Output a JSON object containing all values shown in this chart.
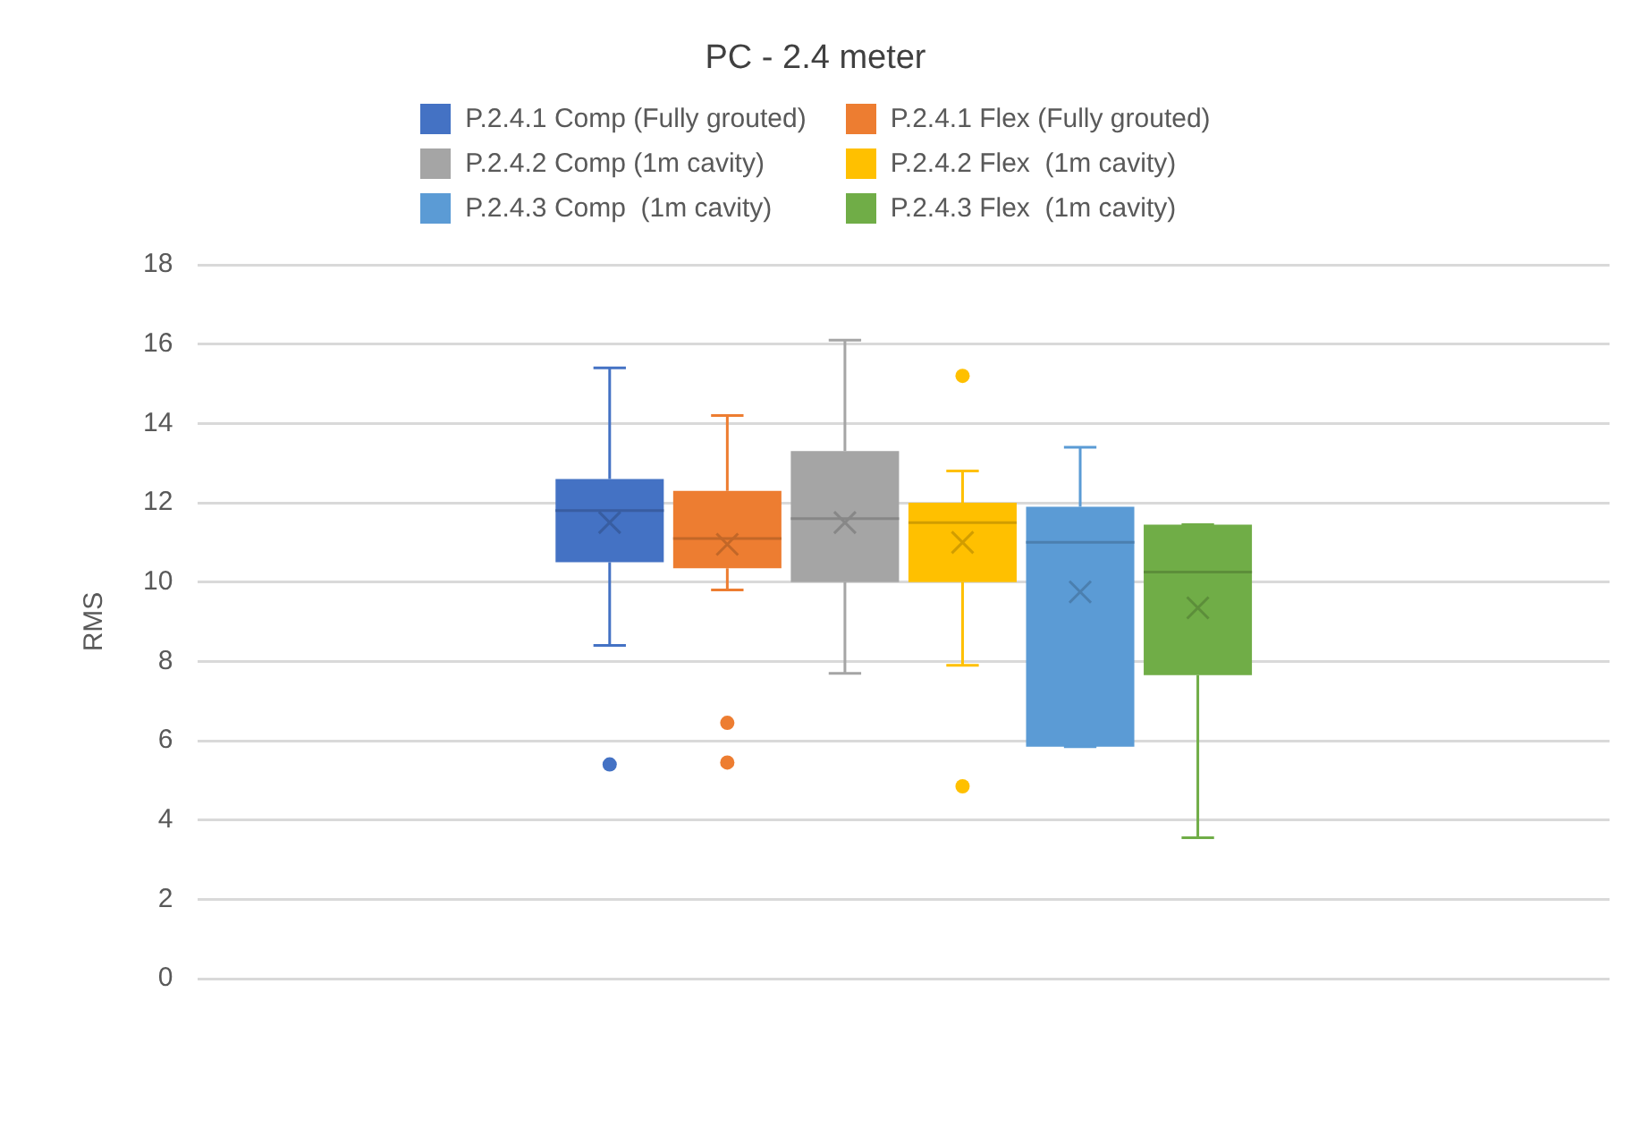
{
  "chart_data": {
    "type": "box",
    "title": "PC - 2.4 meter",
    "ylabel": "RMS",
    "categories": [
      null
    ],
    "ylim": [
      0,
      18
    ],
    "yticks": [
      0,
      2,
      4,
      6,
      8,
      10,
      12,
      14,
      16,
      18
    ],
    "grid": "y",
    "legend": "top",
    "tick_labels": "y",
    "series": [
      {
        "name": "P.2.4.1 Comp (Fully grouted)",
        "color": "#4472c4",
        "boxes": [
          {
            "low": 8.4,
            "q1": 10.5,
            "median": 11.8,
            "q3": 12.6,
            "high": 15.4,
            "mean": 11.5,
            "outliers": [
              5.4
            ]
          }
        ]
      },
      {
        "name": "P.2.4.1 Flex (Fully grouted)",
        "color": "#ed7d31",
        "boxes": [
          {
            "low": 9.8,
            "q1": 10.35,
            "median": 11.1,
            "q3": 12.3,
            "high": 14.2,
            "mean": 10.95,
            "outliers": [
              6.45,
              5.45
            ]
          }
        ]
      },
      {
        "name": "P.2.4.2 Comp (1m cavity)",
        "color": "#a5a5a5",
        "boxes": [
          {
            "low": 7.7,
            "q1": 10,
            "median": 11.6,
            "q3": 13.3,
            "high": 16.1,
            "mean": 11.5
          }
        ]
      },
      {
        "name": "P.2.4.2 Flex  (1m cavity)",
        "color": "#ffc000",
        "boxes": [
          {
            "low": 7.9,
            "q1": 10,
            "median": 11.5,
            "q3": 12,
            "high": 12.8,
            "mean": 11,
            "outliers": [
              15.2,
              4.85
            ]
          }
        ]
      },
      {
        "name": "P.2.4.3 Comp  (1m cavity)",
        "color": "#5b9bd5",
        "boxes": [
          {
            "low": 5.85,
            "q1": 5.85,
            "median": 11,
            "q3": 11.9,
            "high": 13.4,
            "mean": 9.75
          }
        ]
      },
      {
        "name": "P.2.4.3 Flex  (1m cavity)",
        "color": "#70ad47",
        "boxes": [
          {
            "low": 3.55,
            "q1": 7.65,
            "median": 10.25,
            "q3": 11.45,
            "high": 11.45,
            "mean": 9.35
          }
        ]
      }
    ]
  }
}
